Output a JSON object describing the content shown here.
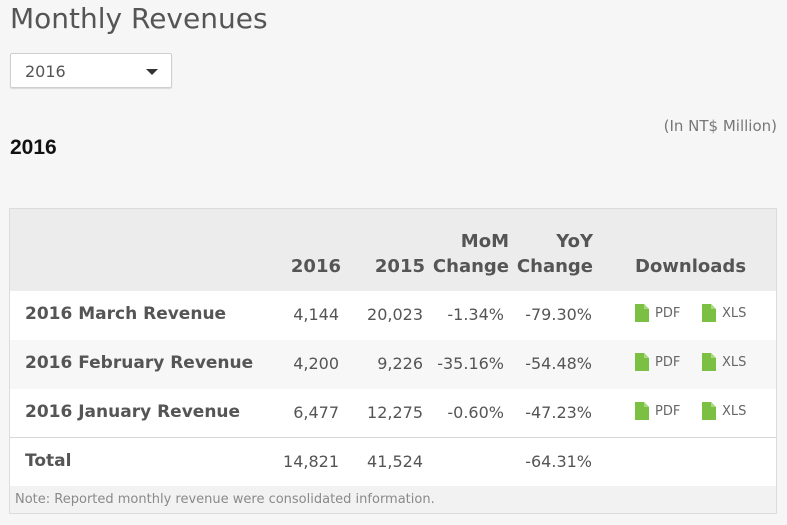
{
  "page": {
    "title": "Monthly Revenues",
    "selected_year": "2016",
    "section_year": "2016",
    "unit_note": "(In NT$ Million)"
  },
  "table": {
    "headers": {
      "current_year": "2016",
      "prior_year": "2015",
      "mom_line1": "MoM",
      "mom_line2": "Change",
      "yoy_line1": "YoY",
      "yoy_line2": "Change",
      "downloads": "Downloads"
    },
    "rows": [
      {
        "label": "2016 March Revenue",
        "current": "4,144",
        "prior": "20,023",
        "mom": "-1.34%",
        "yoy": "-79.30%",
        "pdf": "PDF",
        "xls": "XLS"
      },
      {
        "label": "2016 February Revenue",
        "current": "4,200",
        "prior": "9,226",
        "mom": "-35.16%",
        "yoy": "-54.48%",
        "pdf": "PDF",
        "xls": "XLS"
      },
      {
        "label": "2016 January Revenue",
        "current": "6,477",
        "prior": "12,275",
        "mom": "-0.60%",
        "yoy": "-47.23%",
        "pdf": "PDF",
        "xls": "XLS"
      }
    ],
    "total": {
      "label": "Total",
      "current": "14,821",
      "prior": "41,524",
      "mom": "",
      "yoy": "-64.31%"
    },
    "note": "Note: Reported monthly revenue were consolidated information."
  },
  "colors": {
    "file_icon": "#7bc043",
    "header_bg": "#ececec",
    "text": "#555555"
  },
  "icons": {
    "dropdown": "caret-down-icon",
    "file": "document-icon"
  }
}
